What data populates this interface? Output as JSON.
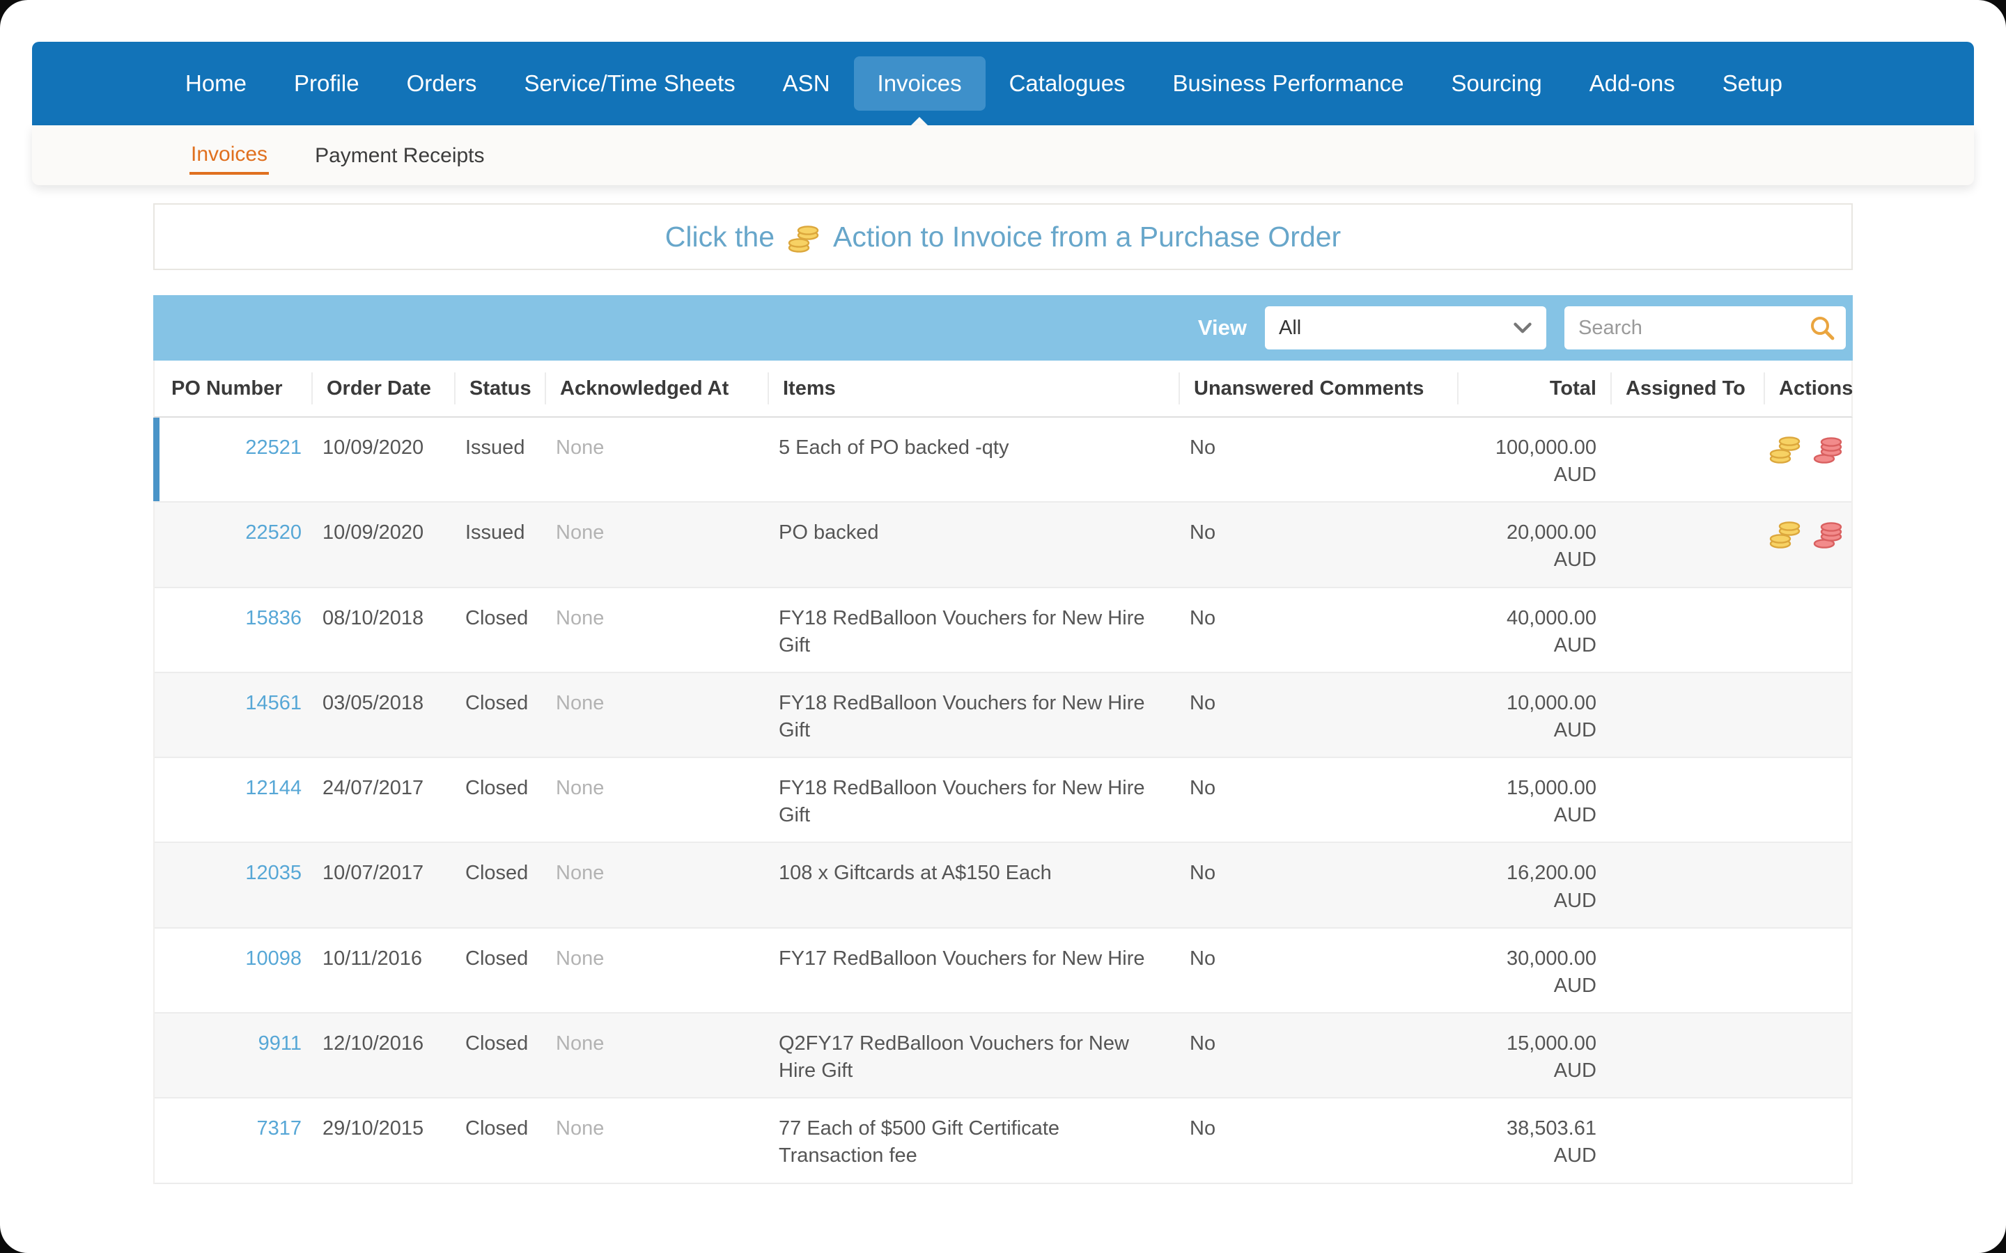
{
  "nav": {
    "items": [
      {
        "label": "Home",
        "active": false
      },
      {
        "label": "Profile",
        "active": false
      },
      {
        "label": "Orders",
        "active": false
      },
      {
        "label": "Service/Time Sheets",
        "active": false
      },
      {
        "label": "ASN",
        "active": false
      },
      {
        "label": "Invoices",
        "active": true
      },
      {
        "label": "Catalogues",
        "active": false
      },
      {
        "label": "Business Performance",
        "active": false
      },
      {
        "label": "Sourcing",
        "active": false
      },
      {
        "label": "Add-ons",
        "active": false
      },
      {
        "label": "Setup",
        "active": false
      }
    ]
  },
  "subnav": {
    "items": [
      {
        "label": "Invoices",
        "active": true
      },
      {
        "label": "Payment Receipts",
        "active": false
      }
    ]
  },
  "banner": {
    "text_before": "Click the",
    "text_after": "Action to Invoice from a Purchase Order",
    "icon": "gold-coins-icon"
  },
  "icons": {
    "banner": "gold-coins-icon",
    "search": "search-icon",
    "dropdown": "chevron-down-icon",
    "action_invoice": "gold-coins-icon",
    "action_credit_note": "red-coins-icon"
  },
  "colors": {
    "nav_blue": "#1273b8",
    "nav_active_blue": "#3e90ca",
    "subnav_orange": "#e0701f",
    "toolbar_blue": "#85c3e5",
    "link_blue": "#57a7d6",
    "banner_text_blue": "#67a6ca",
    "highlight_bar_blue": "#4a94c8",
    "gold_coin": "#f7d264",
    "red_coin": "#f28b8b"
  },
  "table": {
    "view_label": "View",
    "view_value": "All",
    "search_placeholder": "Search",
    "columns": [
      "PO Number",
      "Order Date",
      "Status",
      "Acknowledged At",
      "Items",
      "Unanswered Comments",
      "Total",
      "Assigned To",
      "Actions"
    ],
    "rows": [
      {
        "po": "22521",
        "date": "10/09/2020",
        "status": "Issued",
        "ack": "None",
        "items": "5 Each of PO backed -qty",
        "comments": "No",
        "total": "100,000.00",
        "currency": "AUD",
        "assigned": "",
        "actions": true,
        "highlight": true
      },
      {
        "po": "22520",
        "date": "10/09/2020",
        "status": "Issued",
        "ack": "None",
        "items": "PO backed",
        "comments": "No",
        "total": "20,000.00",
        "currency": "AUD",
        "assigned": "",
        "actions": true,
        "highlight": false
      },
      {
        "po": "15836",
        "date": "08/10/2018",
        "status": "Closed",
        "ack": "None",
        "items": "FY18 RedBalloon Vouchers for New Hire Gift",
        "comments": "No",
        "total": "40,000.00",
        "currency": "AUD",
        "assigned": "",
        "actions": false,
        "highlight": false
      },
      {
        "po": "14561",
        "date": "03/05/2018",
        "status": "Closed",
        "ack": "None",
        "items": "FY18 RedBalloon Vouchers for New Hire Gift",
        "comments": "No",
        "total": "10,000.00",
        "currency": "AUD",
        "assigned": "",
        "actions": false,
        "highlight": false
      },
      {
        "po": "12144",
        "date": "24/07/2017",
        "status": "Closed",
        "ack": "None",
        "items": "FY18 RedBalloon Vouchers for New Hire Gift",
        "comments": "No",
        "total": "15,000.00",
        "currency": "AUD",
        "assigned": "",
        "actions": false,
        "highlight": false
      },
      {
        "po": "12035",
        "date": "10/07/2017",
        "status": "Closed",
        "ack": "None",
        "items": "108 x Giftcards at A$150 Each",
        "comments": "No",
        "total": "16,200.00",
        "currency": "AUD",
        "assigned": "",
        "actions": false,
        "highlight": false
      },
      {
        "po": "10098",
        "date": "10/11/2016",
        "status": "Closed",
        "ack": "None",
        "items": "FY17 RedBalloon Vouchers for New Hire",
        "comments": "No",
        "total": "30,000.00",
        "currency": "AUD",
        "assigned": "",
        "actions": false,
        "highlight": false
      },
      {
        "po": "9911",
        "date": "12/10/2016",
        "status": "Closed",
        "ack": "None",
        "items": "Q2FY17 RedBalloon Vouchers for New Hire Gift",
        "comments": "No",
        "total": "15,000.00",
        "currency": "AUD",
        "assigned": "",
        "actions": false,
        "highlight": false
      },
      {
        "po": "7317",
        "date": "29/10/2015",
        "status": "Closed",
        "ack": "None",
        "items": "77 Each of $500 Gift Certificate Transaction fee",
        "comments": "No",
        "total": "38,503.61",
        "currency": "AUD",
        "assigned": "",
        "actions": false,
        "highlight": false
      }
    ]
  }
}
